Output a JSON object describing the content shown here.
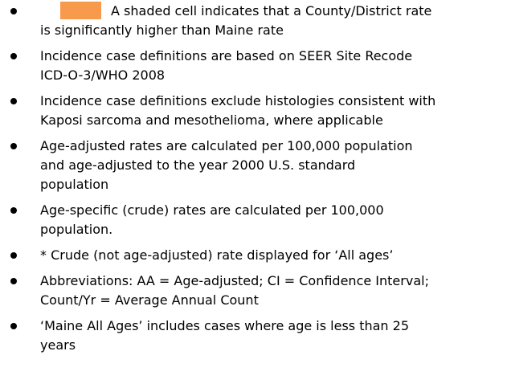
{
  "items": [
    [
      "A shaded cell indicates that a County/District rate",
      "is significantly higher than Maine rate"
    ],
    [
      "Incidence case definitions are based on SEER Site Recode",
      "ICD-O-3/WHO 2008"
    ],
    [
      "Incidence case definitions exclude histologies consistent with",
      "Kaposi sarcoma and mesothelioma, where applicable"
    ],
    [
      "Age-adjusted rates are calculated per 100,000 population",
      "and age-adjusted to the year 2000 U.S. standard",
      "population"
    ],
    [
      "Age-specific (crude) rates are calculated per 100,000",
      "population."
    ],
    [
      "* Crude (not age-adjusted) rate displayed for ‘All ages’"
    ],
    [
      "Abbreviations: AA = Age-adjusted; CI = Confidence Interval;",
      "Count/Yr = Average Annual Count"
    ],
    [
      "‘Maine All Ages’ includes cases where age is less than 25",
      "years"
    ]
  ]
}
